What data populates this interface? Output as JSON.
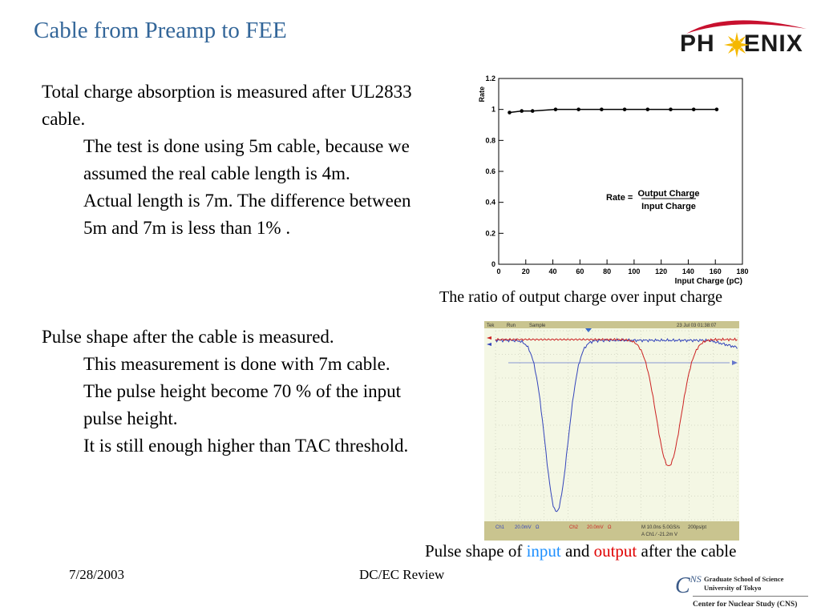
{
  "slide": {
    "title": "Cable from Preamp to FEE",
    "logo_text_left": "PH",
    "logo_text_right": "ENIX"
  },
  "left": {
    "block1": {
      "main": "Total charge absorption is measured after UL2833 cable.",
      "sub1": "The test is done using 5m cable, because we assumed the real cable length is 4m.",
      "sub2": "Actual length is 7m. The difference between 5m and 7m is less than 1% ."
    },
    "block2": {
      "main": "Pulse shape after the cable is measured.",
      "sub1": "This measurement is done with 7m cable.",
      "sub2": "The pulse height become 70 % of the input pulse height.",
      "sub3": "It is still enough higher than TAC threshold."
    }
  },
  "chart_data": {
    "type": "scatter",
    "title": "",
    "xlabel": "Input Charge (pC)",
    "ylabel": "Rate",
    "xlim": [
      0,
      180
    ],
    "ylim": [
      0,
      1.2
    ],
    "xticks": [
      "0",
      "20",
      "40",
      "60",
      "80",
      "100",
      "120",
      "140",
      "160",
      "180"
    ],
    "yticks": [
      "0",
      "0.2",
      "0.4",
      "0.6",
      "0.8",
      "1",
      "1.2"
    ],
    "x": [
      8,
      17,
      25,
      42,
      59,
      76,
      93,
      110,
      127,
      144,
      161
    ],
    "y": [
      0.98,
      0.99,
      0.99,
      1.0,
      1.0,
      1.0,
      1.0,
      1.0,
      1.0,
      1.0,
      1.0
    ],
    "annotation": {
      "left": "Rate =",
      "numerator": "Output Charge",
      "denominator": "Input Charge"
    },
    "grid": false,
    "line_color": "#000000"
  },
  "captions": {
    "chart": "The ratio of output charge over input charge",
    "scope_pre": "Pulse shape of ",
    "scope_input": "input",
    "scope_and": " and ",
    "scope_output": "output",
    "scope_post": " after the cable"
  },
  "scope": {
    "header_left": "Tek",
    "header_run": "Run",
    "header_sample": "Sample",
    "header_date": "23 Jul 03 01:38:07",
    "marker": "1",
    "footer_ch1": "Ch1",
    "footer_ch1_scale": "20.0mV",
    "footer_ch2": "Ch2",
    "footer_ch2_scale": "20.0mV",
    "footer_ohm": "Ω",
    "footer_time": "M 10.0ns 5.0GS/s",
    "footer_pts": "200ps/pt",
    "footer_trig": "A Ch1 ⁄ -21.2m V",
    "input_color": "#3344bb",
    "output_color": "#cc2222",
    "bg_color": "#f4f7e4"
  },
  "footer": {
    "date": "7/28/2003",
    "center": "DC/EC Review",
    "cns_mark": "C",
    "cns_sup": "NS",
    "cns_line1": "Graduate School of Science",
    "cns_line2": "University of Tokyo",
    "cns_line3": "Center for Nuclear Study (CNS)"
  }
}
